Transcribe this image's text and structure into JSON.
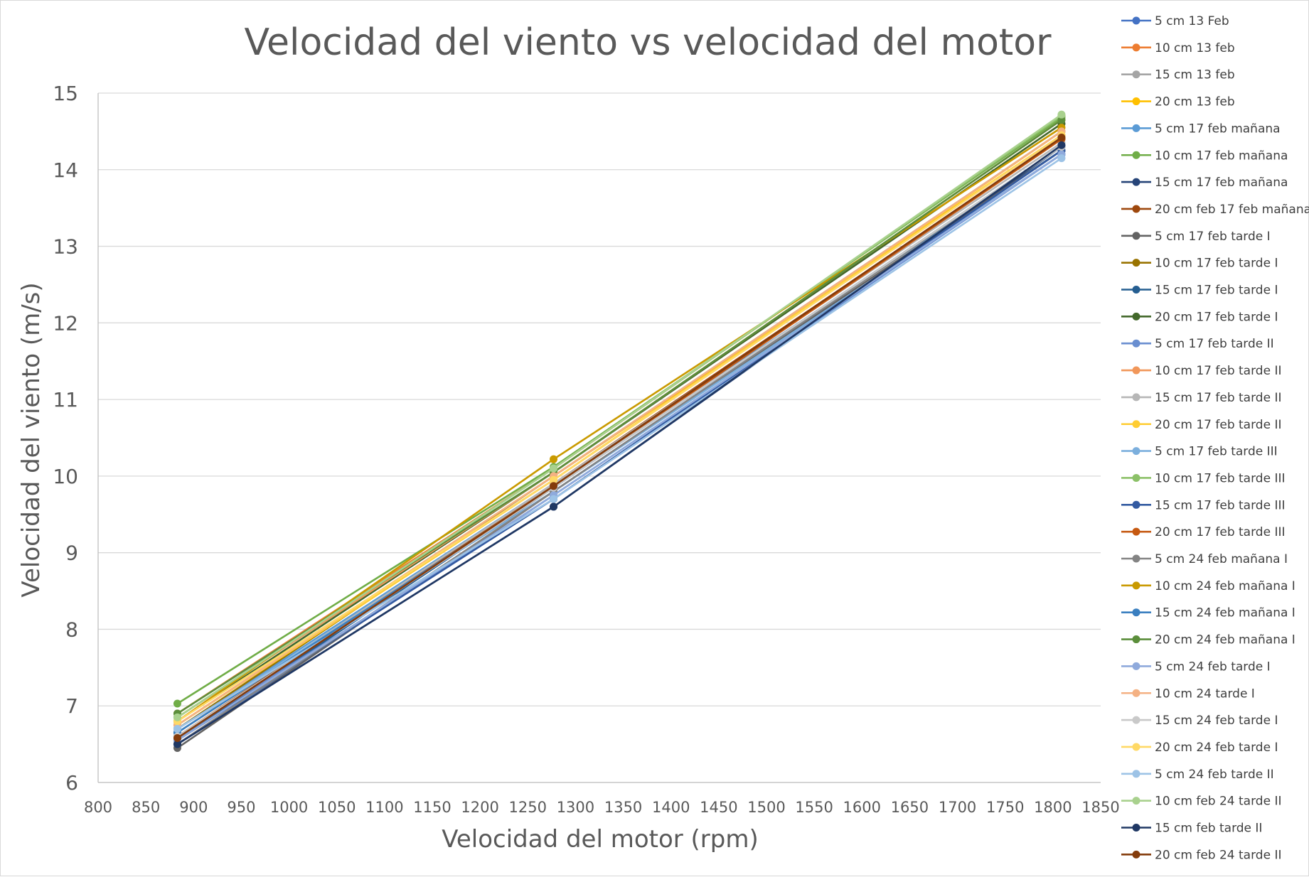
{
  "chart_data": {
    "type": "line",
    "title": "Velocidad del viento vs velocidad del motor",
    "xlabel": "Velocidad del motor (rpm)",
    "ylabel": "Velocidad del viento (m/s)",
    "xlim": [
      800,
      1850
    ],
    "ylim": [
      6,
      15
    ],
    "xticks": [
      800,
      850,
      900,
      950,
      1000,
      1050,
      1100,
      1150,
      1200,
      1250,
      1300,
      1350,
      1400,
      1450,
      1500,
      1550,
      1600,
      1650,
      1700,
      1750,
      1800,
      1850
    ],
    "yticks": [
      6,
      7,
      8,
      9,
      10,
      11,
      12,
      13,
      14,
      15
    ],
    "grid": "horizontal",
    "legend_position": "right",
    "x": [
      883,
      1277,
      1809
    ],
    "series": [
      {
        "name": "5 cm 13 Feb",
        "color": "#4472C4",
        "values": [
          6.5,
          9.75,
          14.2
        ]
      },
      {
        "name": "10 cm 13 feb",
        "color": "#ED7D31",
        "values": [
          6.9,
          10.1,
          14.7
        ]
      },
      {
        "name": "15 cm 13 feb",
        "color": "#A5A5A5",
        "values": [
          6.6,
          9.85,
          14.3
        ]
      },
      {
        "name": "20 cm 13 feb",
        "color": "#FFC000",
        "values": [
          6.75,
          10.0,
          14.45
        ]
      },
      {
        "name": "5 cm 17 feb mañana",
        "color": "#5B9BD5",
        "values": [
          6.7,
          9.9,
          14.25
        ]
      },
      {
        "name": "10 cm 17 feb mañana",
        "color": "#70AD47",
        "values": [
          7.03,
          10.12,
          14.68
        ]
      },
      {
        "name": "15 cm 17 feb mañana",
        "color": "#264478",
        "values": [
          6.5,
          9.6,
          14.3
        ]
      },
      {
        "name": "20 cm feb 17 feb mañana",
        "color": "#9E480E",
        "values": [
          6.6,
          9.9,
          14.4
        ]
      },
      {
        "name": "5 cm 17 feb tarde I",
        "color": "#636363",
        "values": [
          6.45,
          9.8,
          14.25
        ]
      },
      {
        "name": "10 cm 17 feb tarde I",
        "color": "#997300",
        "values": [
          6.7,
          10.0,
          14.5
        ]
      },
      {
        "name": "15 cm 17 feb tarde I",
        "color": "#255E91",
        "values": [
          6.55,
          9.85,
          14.3
        ]
      },
      {
        "name": "20 cm 17 feb tarde I",
        "color": "#43682B",
        "values": [
          6.8,
          10.05,
          14.6
        ]
      },
      {
        "name": "5 cm 17 feb tarde II",
        "color": "#698ED0",
        "values": [
          6.6,
          9.7,
          14.2
        ]
      },
      {
        "name": "10 cm 17 feb tarde II",
        "color": "#F1975A",
        "values": [
          6.85,
          10.05,
          14.65
        ]
      },
      {
        "name": "15 cm 17 feb tarde II",
        "color": "#B7B7B7",
        "values": [
          6.65,
          9.9,
          14.35
        ]
      },
      {
        "name": "20 cm 17 feb tarde II",
        "color": "#FFCD33",
        "values": [
          6.75,
          9.95,
          14.5
        ]
      },
      {
        "name": "5 cm 17 feb tarde III",
        "color": "#7CAFDD",
        "values": [
          6.7,
          9.8,
          14.2
        ]
      },
      {
        "name": "10 cm 17 feb tarde III",
        "color": "#8CC168",
        "values": [
          6.85,
          10.1,
          14.7
        ]
      },
      {
        "name": "15 cm 17 feb tarde III",
        "color": "#335AA1",
        "values": [
          6.55,
          9.7,
          14.25
        ]
      },
      {
        "name": "20 cm 17 feb tarde III",
        "color": "#C65911",
        "values": [
          6.6,
          9.85,
          14.4
        ]
      },
      {
        "name": "5 cm 24 feb mañana I",
        "color": "#848484",
        "values": [
          6.5,
          9.8,
          14.3
        ]
      },
      {
        "name": "10 cm 24 feb mañana I",
        "color": "#C99A00",
        "values": [
          6.8,
          10.22,
          14.55
        ]
      },
      {
        "name": "15 cm 24 feb mañana I",
        "color": "#3A7FC0",
        "values": [
          6.65,
          9.85,
          14.3
        ]
      },
      {
        "name": "20 cm 24 feb mañana I",
        "color": "#5B8E3B",
        "values": [
          6.9,
          10.05,
          14.65
        ]
      },
      {
        "name": "5 cm 24 feb tarde I",
        "color": "#8FAADC",
        "values": [
          6.55,
          9.75,
          14.2
        ]
      },
      {
        "name": "10 cm 24 tarde I",
        "color": "#F4B183",
        "values": [
          6.75,
          10.0,
          14.5
        ]
      },
      {
        "name": "15 cm 24 feb tarde I",
        "color": "#C9C9C9",
        "values": [
          6.6,
          9.85,
          14.3
        ]
      },
      {
        "name": "20 cm 24 feb tarde I",
        "color": "#FFD966",
        "values": [
          6.8,
          9.95,
          14.45
        ]
      },
      {
        "name": "5 cm 24 feb tarde II",
        "color": "#9DC3E6",
        "values": [
          6.7,
          9.7,
          14.15
        ]
      },
      {
        "name": "10 cm feb 24 tarde II",
        "color": "#A9D18E",
        "values": [
          6.85,
          10.1,
          14.72
        ]
      },
      {
        "name": "15 cm feb tarde II",
        "color": "#203864",
        "values": [
          6.5,
          9.6,
          14.32
        ]
      },
      {
        "name": "20 cm feb 24 tarde II",
        "color": "#843C0C",
        "values": [
          6.58,
          9.87,
          14.42
        ]
      }
    ]
  }
}
